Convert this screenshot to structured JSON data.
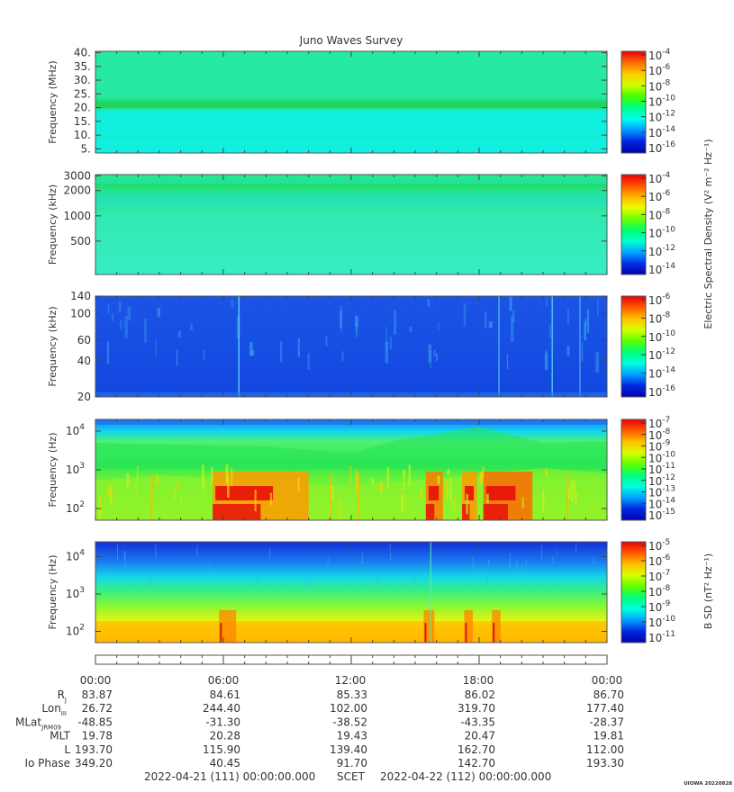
{
  "chart_data": {
    "type": "heatmap",
    "title": "Juno Waves Survey",
    "x_range": [
      "2022-04-21 00:00",
      "2022-04-22 00:00"
    ],
    "panels": [
      {
        "id": "p1",
        "ylabel": "Frequency (MHz)",
        "y_scale": "linear",
        "ylim": [
          3.5,
          40.5
        ],
        "yticks": [
          {
            "v": 5,
            "label": "5."
          },
          {
            "v": 10,
            "label": "10."
          },
          {
            "v": 15,
            "label": "15."
          },
          {
            "v": 20,
            "label": "20."
          },
          {
            "v": 25,
            "label": "25."
          },
          {
            "v": 30,
            "label": "30."
          },
          {
            "v": 35,
            "label": "35."
          },
          {
            "v": 40,
            "label": "40."
          }
        ],
        "colorbar": {
          "exponents": [
            "-4",
            "-6",
            "-8",
            "-10",
            "-12",
            "-14",
            "-16"
          ],
          "colors": [
            "#e8000b",
            "#ff6a00",
            "#ffcc00",
            "#cfff00",
            "#41ff00",
            "#00ff8a",
            "#00ffee",
            "#0096ff",
            "#0022dd",
            "#0000b0"
          ],
          "label": ""
        }
      },
      {
        "id": "p2",
        "ylabel": "Frequency (kHz)",
        "y_scale": "log",
        "ylim": [
          200,
          3100
        ],
        "yticks": [
          {
            "v": 500,
            "label": "500"
          },
          {
            "v": 1000,
            "label": "1000"
          },
          {
            "v": 2000,
            "label": "2000"
          },
          {
            "v": 3000,
            "label": "3000"
          }
        ],
        "colorbar": {
          "exponents": [
            "-4",
            "-6",
            "-8",
            "-10",
            "-12",
            "-14"
          ],
          "colors": [
            "#e8000b",
            "#ff5200",
            "#ffb400",
            "#e8ff00",
            "#6dff00",
            "#00ff6a",
            "#00ffd0",
            "#00a8ff",
            "#0030e8",
            "#0000b0"
          ],
          "label": "Electric Spectral Density (V² m⁻² Hz⁻¹)"
        }
      },
      {
        "id": "p3",
        "ylabel": "Frequency (kHz)",
        "y_scale": "log",
        "ylim": [
          20,
          140
        ],
        "yticks": [
          {
            "v": 20,
            "label": "20"
          },
          {
            "v": 40,
            "label": "40"
          },
          {
            "v": 60,
            "label": "60"
          },
          {
            "v": 100,
            "label": "100"
          },
          {
            "v": 140,
            "label": "140"
          }
        ],
        "colorbar": {
          "exponents": [
            "-6",
            "-8",
            "-10",
            "-12",
            "-14",
            "-16"
          ],
          "colors": [
            "#e8000b",
            "#ff5a00",
            "#ffc000",
            "#d8ff00",
            "#5cff00",
            "#00ff7a",
            "#00ffe0",
            "#00a0ff",
            "#0028e0",
            "#0000b0"
          ],
          "label": ""
        }
      },
      {
        "id": "p4",
        "ylabel": "Frequency (Hz)",
        "y_scale": "log",
        "ylim": [
          50,
          20000
        ],
        "yticks": [
          {
            "v": 100,
            "label": "10",
            "exp": "2"
          },
          {
            "v": 1000,
            "label": "10",
            "exp": "3"
          },
          {
            "v": 10000,
            "label": "10",
            "exp": "4"
          }
        ],
        "colorbar": {
          "exponents": [
            "-7",
            "-8",
            "-9",
            "-10",
            "-11",
            "-12",
            "-13",
            "-14",
            "-15"
          ],
          "colors": [
            "#e8000b",
            "#ff5a00",
            "#ffc000",
            "#d8ff00",
            "#5cff00",
            "#00ff7a",
            "#00ffe0",
            "#00a0ff",
            "#0028e0",
            "#0000b0"
          ],
          "label": ""
        }
      },
      {
        "id": "p5",
        "ylabel": "Frequency (Hz)",
        "y_scale": "log",
        "ylim": [
          50,
          25000
        ],
        "yticks": [
          {
            "v": 100,
            "label": "10",
            "exp": "2"
          },
          {
            "v": 1000,
            "label": "10",
            "exp": "3"
          },
          {
            "v": 10000,
            "label": "10",
            "exp": "4"
          }
        ],
        "colorbar": {
          "exponents": [
            "-5",
            "-6",
            "-7",
            "-8",
            "-9",
            "-10",
            "-11"
          ],
          "colors": [
            "#e8000b",
            "#ff5a00",
            "#ffc000",
            "#d8ff00",
            "#5cff00",
            "#00ff7a",
            "#00ffe0",
            "#00a0ff",
            "#0028e0",
            "#0000b0"
          ],
          "label": "B SD (nT² Hz⁻¹)"
        }
      }
    ],
    "ephemeris": {
      "times": [
        "00:00",
        "06:00",
        "12:00",
        "18:00",
        "00:00"
      ],
      "rows": [
        {
          "label": "R",
          "sub": "J",
          "values": [
            "83.87",
            "84.61",
            "85.33",
            "86.02",
            "86.70"
          ]
        },
        {
          "label": "Lon",
          "sub": "III",
          "values": [
            "26.72",
            "244.40",
            "102.00",
            "319.70",
            "177.40"
          ]
        },
        {
          "label": "MLat",
          "sub": "JRM09",
          "values": [
            "-48.85",
            "-31.30",
            "-38.52",
            "-43.35",
            "-28.37"
          ]
        },
        {
          "label": "MLT",
          "sub": "",
          "values": [
            "19.78",
            "20.28",
            "19.43",
            "20.47",
            "19.81"
          ]
        },
        {
          "label": "L",
          "sub": "",
          "values": [
            "193.70",
            "115.90",
            "139.40",
            "162.70",
            "112.00"
          ]
        },
        {
          "label": "Io Phase",
          "sub": "",
          "values": [
            "349.20",
            "40.45",
            "91.70",
            "142.70",
            "193.30"
          ]
        }
      ]
    },
    "footer": {
      "start": "2022-04-21 (111) 00:00:00.000",
      "scet": "SCET",
      "end": "2022-04-22 (112) 00:00:00.000",
      "credit": "UIOWA 20220828"
    }
  }
}
